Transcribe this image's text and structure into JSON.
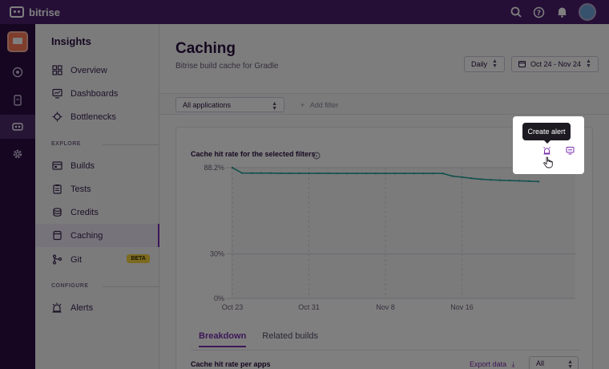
{
  "app": {
    "brand": "bitrise"
  },
  "nav": {
    "title": "Insights",
    "items_top": [
      {
        "label": "Overview",
        "icon": "grid-icon"
      },
      {
        "label": "Dashboards",
        "icon": "monitor-icon"
      },
      {
        "label": "Bottlenecks",
        "icon": "bug-icon"
      }
    ],
    "section_explore": "EXPLORE",
    "items_explore": [
      {
        "label": "Builds",
        "icon": "builds-icon"
      },
      {
        "label": "Tests",
        "icon": "clipboard-icon"
      },
      {
        "label": "Credits",
        "icon": "coins-icon"
      },
      {
        "label": "Caching",
        "icon": "cache-icon",
        "active": true
      },
      {
        "label": "Git",
        "icon": "git-icon",
        "badge": "BETA"
      }
    ],
    "section_configure": "CONFIGURE",
    "items_configure": [
      {
        "label": "Alerts",
        "icon": "alarm-icon"
      }
    ]
  },
  "main": {
    "title": "Caching",
    "subtitle": "Bitrise build cache for Gradle",
    "interval": "Daily",
    "date_range": "Oct 24 - Nov 24",
    "app_filter": "All applications",
    "add_filter": "Add filter",
    "card_title": "Cache hit rate for the selected filters",
    "tabs": [
      "Breakdown",
      "Related builds"
    ],
    "active_tab": "Breakdown",
    "per_apps_title": "Cache hit rate per apps",
    "export_label": "Export data",
    "per_apps_select": "All"
  },
  "tooltip": {
    "label": "Create alert"
  },
  "colors": {
    "topbar": "#4a1e6e",
    "accent": "#7a2fb0",
    "line": "#2aa39a",
    "badge": "#f6d53f"
  },
  "chart_data": {
    "type": "line",
    "title": "Cache hit rate for the selected filters",
    "y_ticks": [
      "0%",
      "30%",
      "88.2%"
    ],
    "x_ticks": [
      "Oct 23",
      "Oct 31",
      "Nov 8",
      "Nov 16"
    ],
    "ylim": [
      0,
      88.2
    ],
    "series": [
      {
        "x": [
          "Oct 23",
          "Oct 24",
          "Oct 25",
          "Oct 26",
          "Oct 27",
          "Oct 28",
          "Oct 29",
          "Oct 30",
          "Oct 31",
          "Nov 1",
          "Nov 2",
          "Nov 3",
          "Nov 4",
          "Nov 5",
          "Nov 6",
          "Nov 7",
          "Nov 8",
          "Nov 9",
          "Nov 10",
          "Nov 11",
          "Nov 12",
          "Nov 13",
          "Nov 14",
          "Nov 15",
          "Nov 16",
          "Nov 17",
          "Nov 18",
          "Nov 19",
          "Nov 20",
          "Nov 21",
          "Nov 22",
          "Nov 23",
          "Nov 24"
        ],
        "values": [
          88.2,
          84.6,
          84.5,
          84.5,
          84.5,
          84.4,
          84.4,
          84.4,
          84.4,
          84.4,
          84.4,
          84.3,
          84.3,
          84.3,
          84.3,
          84.3,
          84.3,
          84.3,
          84.3,
          84.3,
          84.3,
          84.3,
          84.3,
          82.5,
          81.8,
          81.0,
          80.4,
          80.0,
          79.7,
          79.5,
          79.3,
          79.1,
          78.8
        ]
      }
    ],
    "grid": true
  }
}
